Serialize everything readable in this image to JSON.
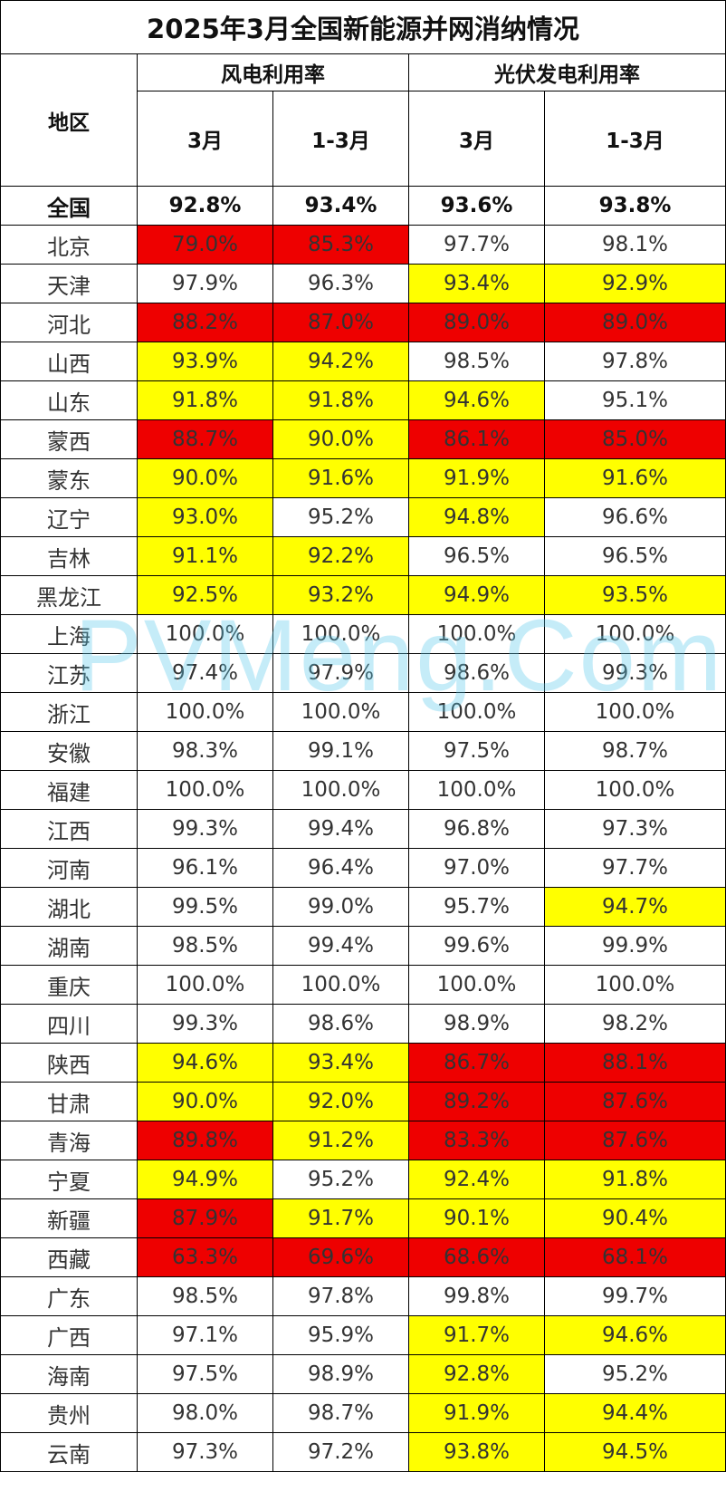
{
  "title": "2025年3月全国新能源并网消纳情况",
  "header": {
    "region": "地区",
    "wind_group": "风电利用率",
    "solar_group": "光伏发电利用率",
    "sub_columns": [
      "3月",
      "1-3月",
      "3月",
      "1-3月"
    ]
  },
  "level_colors": {
    "red": "#ee0000",
    "yellow": "#ffff00",
    "none": "#ffffff"
  },
  "rows": [
    {
      "region": "全国",
      "values": [
        "92.8%",
        "93.4%",
        "93.6%",
        "93.8%"
      ],
      "levels": [
        "none",
        "none",
        "none",
        "none"
      ]
    },
    {
      "region": "北京",
      "values": [
        "79.0%",
        "85.3%",
        "97.7%",
        "98.1%"
      ],
      "levels": [
        "red",
        "red",
        "none",
        "none"
      ]
    },
    {
      "region": "天津",
      "values": [
        "97.9%",
        "96.3%",
        "93.4%",
        "92.9%"
      ],
      "levels": [
        "none",
        "none",
        "yellow",
        "yellow"
      ]
    },
    {
      "region": "河北",
      "values": [
        "88.2%",
        "87.0%",
        "89.0%",
        "89.0%"
      ],
      "levels": [
        "red",
        "red",
        "red",
        "red"
      ]
    },
    {
      "region": "山西",
      "values": [
        "93.9%",
        "94.2%",
        "98.5%",
        "97.8%"
      ],
      "levels": [
        "yellow",
        "yellow",
        "none",
        "none"
      ]
    },
    {
      "region": "山东",
      "values": [
        "91.8%",
        "91.8%",
        "94.6%",
        "95.1%"
      ],
      "levels": [
        "yellow",
        "yellow",
        "yellow",
        "none"
      ]
    },
    {
      "region": "蒙西",
      "values": [
        "88.7%",
        "90.0%",
        "86.1%",
        "85.0%"
      ],
      "levels": [
        "red",
        "yellow",
        "red",
        "red"
      ]
    },
    {
      "region": "蒙东",
      "values": [
        "90.0%",
        "91.6%",
        "91.9%",
        "91.6%"
      ],
      "levels": [
        "yellow",
        "yellow",
        "yellow",
        "yellow"
      ]
    },
    {
      "region": "辽宁",
      "values": [
        "93.0%",
        "95.2%",
        "94.8%",
        "96.6%"
      ],
      "levels": [
        "yellow",
        "none",
        "yellow",
        "none"
      ]
    },
    {
      "region": "吉林",
      "values": [
        "91.1%",
        "92.2%",
        "96.5%",
        "96.5%"
      ],
      "levels": [
        "yellow",
        "yellow",
        "none",
        "none"
      ]
    },
    {
      "region": "黑龙江",
      "values": [
        "92.5%",
        "93.2%",
        "94.9%",
        "93.5%"
      ],
      "levels": [
        "yellow",
        "yellow",
        "yellow",
        "yellow"
      ]
    },
    {
      "region": "上海",
      "values": [
        "100.0%",
        "100.0%",
        "100.0%",
        "100.0%"
      ],
      "levels": [
        "none",
        "none",
        "none",
        "none"
      ]
    },
    {
      "region": "江苏",
      "values": [
        "97.4%",
        "97.9%",
        "98.6%",
        "99.3%"
      ],
      "levels": [
        "none",
        "none",
        "none",
        "none"
      ]
    },
    {
      "region": "浙江",
      "values": [
        "100.0%",
        "100.0%",
        "100.0%",
        "100.0%"
      ],
      "levels": [
        "none",
        "none",
        "none",
        "none"
      ]
    },
    {
      "region": "安徽",
      "values": [
        "98.3%",
        "99.1%",
        "97.5%",
        "98.7%"
      ],
      "levels": [
        "none",
        "none",
        "none",
        "none"
      ]
    },
    {
      "region": "福建",
      "values": [
        "100.0%",
        "100.0%",
        "100.0%",
        "100.0%"
      ],
      "levels": [
        "none",
        "none",
        "none",
        "none"
      ]
    },
    {
      "region": "江西",
      "values": [
        "99.3%",
        "99.4%",
        "96.8%",
        "97.3%"
      ],
      "levels": [
        "none",
        "none",
        "none",
        "none"
      ]
    },
    {
      "region": "河南",
      "values": [
        "96.1%",
        "96.4%",
        "97.0%",
        "97.7%"
      ],
      "levels": [
        "none",
        "none",
        "none",
        "none"
      ]
    },
    {
      "region": "湖北",
      "values": [
        "99.5%",
        "99.0%",
        "95.7%",
        "94.7%"
      ],
      "levels": [
        "none",
        "none",
        "none",
        "yellow"
      ]
    },
    {
      "region": "湖南",
      "values": [
        "98.5%",
        "99.4%",
        "99.6%",
        "99.9%"
      ],
      "levels": [
        "none",
        "none",
        "none",
        "none"
      ]
    },
    {
      "region": "重庆",
      "values": [
        "100.0%",
        "100.0%",
        "100.0%",
        "100.0%"
      ],
      "levels": [
        "none",
        "none",
        "none",
        "none"
      ]
    },
    {
      "region": "四川",
      "values": [
        "99.3%",
        "98.6%",
        "98.9%",
        "98.2%"
      ],
      "levels": [
        "none",
        "none",
        "none",
        "none"
      ]
    },
    {
      "region": "陕西",
      "values": [
        "94.6%",
        "93.4%",
        "86.7%",
        "88.1%"
      ],
      "levels": [
        "yellow",
        "yellow",
        "red",
        "red"
      ]
    },
    {
      "region": "甘肃",
      "values": [
        "90.0%",
        "92.0%",
        "89.2%",
        "87.6%"
      ],
      "levels": [
        "yellow",
        "yellow",
        "red",
        "red"
      ]
    },
    {
      "region": "青海",
      "values": [
        "89.8%",
        "91.2%",
        "83.3%",
        "87.6%"
      ],
      "levels": [
        "red",
        "yellow",
        "red",
        "red"
      ]
    },
    {
      "region": "宁夏",
      "values": [
        "94.9%",
        "95.2%",
        "92.4%",
        "91.8%"
      ],
      "levels": [
        "yellow",
        "none",
        "yellow",
        "yellow"
      ]
    },
    {
      "region": "新疆",
      "values": [
        "87.9%",
        "91.7%",
        "90.1%",
        "90.4%"
      ],
      "levels": [
        "red",
        "yellow",
        "yellow",
        "yellow"
      ]
    },
    {
      "region": "西藏",
      "values": [
        "63.3%",
        "69.6%",
        "68.6%",
        "68.1%"
      ],
      "levels": [
        "red",
        "red",
        "red",
        "red"
      ]
    },
    {
      "region": "广东",
      "values": [
        "98.5%",
        "97.8%",
        "99.8%",
        "99.7%"
      ],
      "levels": [
        "none",
        "none",
        "none",
        "none"
      ]
    },
    {
      "region": "广西",
      "values": [
        "97.1%",
        "95.9%",
        "91.7%",
        "94.6%"
      ],
      "levels": [
        "none",
        "none",
        "yellow",
        "yellow"
      ]
    },
    {
      "region": "海南",
      "values": [
        "97.5%",
        "98.9%",
        "92.8%",
        "95.2%"
      ],
      "levels": [
        "none",
        "none",
        "yellow",
        "none"
      ]
    },
    {
      "region": "贵州",
      "values": [
        "98.0%",
        "98.7%",
        "91.9%",
        "94.4%"
      ],
      "levels": [
        "none",
        "none",
        "yellow",
        "yellow"
      ]
    },
    {
      "region": "云南",
      "values": [
        "97.3%",
        "97.2%",
        "93.8%",
        "94.5%"
      ],
      "levels": [
        "none",
        "none",
        "yellow",
        "yellow"
      ]
    }
  ],
  "watermark": "PVMeng.Com"
}
